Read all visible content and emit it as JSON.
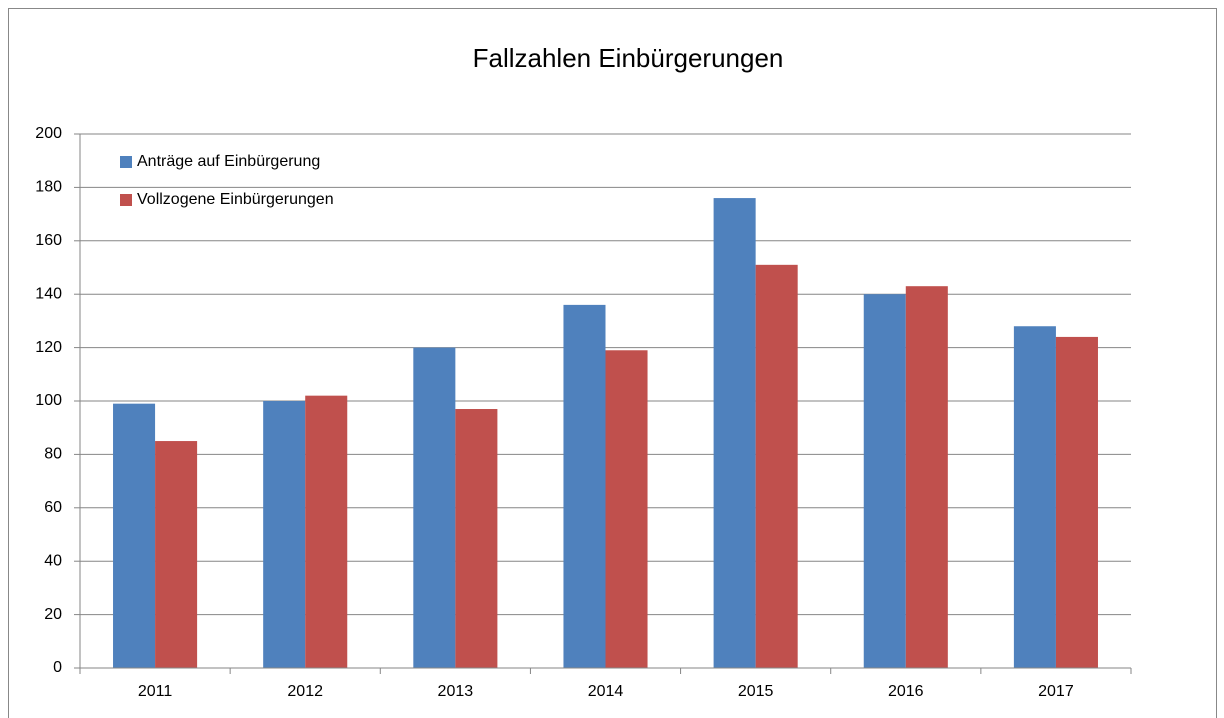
{
  "chart_data": {
    "type": "bar",
    "title": "Fallzahlen Einbürgerungen",
    "categories": [
      "2011",
      "2012",
      "2013",
      "2014",
      "2015",
      "2016",
      "2017"
    ],
    "series": [
      {
        "name": "Anträge auf Einbürgerung",
        "color": "#4f81bd",
        "values": [
          99,
          100,
          120,
          136,
          176,
          140,
          128
        ]
      },
      {
        "name": "Vollzogene Einbürgerungen",
        "color": "#c0504d",
        "values": [
          85,
          102,
          97,
          119,
          151,
          143,
          124
        ]
      }
    ],
    "ylim": [
      0,
      200
    ],
    "yticks": [
      0,
      20,
      40,
      60,
      80,
      100,
      120,
      140,
      160,
      180,
      200
    ],
    "grid": true,
    "legend": "top-left"
  }
}
